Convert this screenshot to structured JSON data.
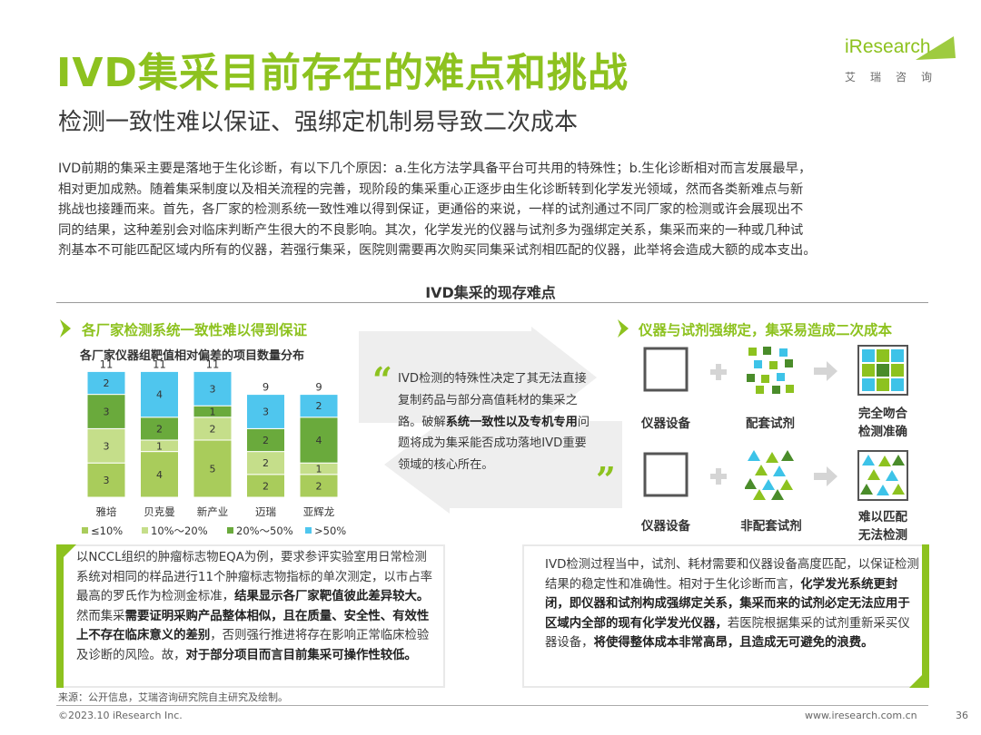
{
  "header": {
    "title": "IVD集采目前存在的难点和挑战",
    "subtitle": "检测一致性难以保证、强绑定机制易导致二次成本",
    "logo_text": "iResearch",
    "logo_cn": "艾瑞咨询"
  },
  "intro": [
    "IVD前期的集采主要是落地于生化诊断，有以下几个原因：a.生化方法学具备平台可共用的特殊性；b.生化诊断相对而言发展最早，",
    "相对更加成熟。随着集采制度以及相关流程的完善，现阶段的集采重心正逐步由生化诊断转到化学发光领域，然而各类新难点与新",
    "挑战也接踵而来。首先，各厂家的检测系统一致性难以得到保证，更通俗的来说，一样的试剂通过不同厂家的检测或许会展现出不",
    "同的结果，这种差别会对临床判断产生很大的不良影响。其次，化学发光的仪器与试剂多为强绑定关系，集采而来的一种或几种试",
    "剂基本不可能匹配区域内所有的仪器，若强行集采，医院则需要再次购买同集采试剂相匹配的仪器，此举将会造成大额的成本支出。"
  ],
  "section_title": "IVD集采的现存难点",
  "left_panel": {
    "heading": "各厂家检测系统一致性难以得到保证"
  },
  "right_panel": {
    "heading": "仪器与试剂强绑定，集采易造成二次成本",
    "row1": {
      "a": "仪器设备",
      "b": "配套试剂",
      "c1": "完全吻合",
      "c2": "检测准确"
    },
    "row2": {
      "a": "仪器设备",
      "b": "非配套试剂",
      "c1": "难以匹配",
      "c2": "无法检测"
    },
    "colors": {
      "square_fill": "#3dc3e8",
      "triangle_fill": "#8dc21f",
      "dark_green": "#4a8c2a",
      "grid_fill": "#8dc21f"
    }
  },
  "quote": {
    "open": "“",
    "close": "”",
    "p1": "IVD检测的特殊性决定了其无法直接复制药品与部分高值耗材的集采之路。破解",
    "p1_bold": "系统一致性以及专机专用",
    "p1_end": "问题将成为集采能否成功落地IVD重要领域的核心所在。"
  },
  "box_left": {
    "t1": "以NCCL组织的肿瘤标志物EQA为例，要求参评实验室用日常检测系统对相同的样品进行11个肿瘤标志物指标的单次测定，以市占率最高的罗氏作为检测金标准，",
    "b1": "结果显示各厂家靶值彼此差异较大。",
    "t2": "然而集采",
    "b2": "需要证明采购产品整体相似，且在质量、安全性、有效性上不存在临床意义的差别",
    "t3": "，否则强行推进将存在影响正常临床检验及诊断的风险。故，",
    "b3": "对于部分项目而言目前集采可操作性较低。"
  },
  "box_right": {
    "t1": "IVD检测过程当中，试剂、耗材需要和仪器设备高度匹配，以保证检测结果的稳定性和准确性。相对于生化诊断而言，",
    "b1": "化学发光系统更封闭，即仪器和试剂构成强绑定关系，集采而来的试剂必定无法应用于区域内全部的现有化学发光仪器，",
    "t2": "若医院根据集采的试剂重新采买仪器设备，",
    "b2": "将使得整体成本非常高昂，且造成无可避免的浪费。"
  },
  "footer": {
    "source": "来源：公开信息，艾瑞咨询研究院自主研究及绘制。",
    "copyright": "©2023.10 iResearch Inc.",
    "url": "www.iresearch.com.cn",
    "page": "36"
  },
  "chart_data": {
    "type": "bar",
    "stacked": true,
    "title": "各厂家仪器组靶值相对偏差的项目数量分布",
    "categories": [
      "雅培",
      "贝克曼",
      "新产业",
      "迈瑞",
      "亚辉龙"
    ],
    "totals": [
      11,
      11,
      11,
      9,
      9
    ],
    "series": [
      {
        "name": "≤10%",
        "color": "#a9cc5b",
        "values": [
          3,
          4,
          5,
          2,
          2
        ]
      },
      {
        "name": "10%～20%",
        "color": "#c5de8a",
        "values": [
          3,
          1,
          2,
          2,
          1
        ]
      },
      {
        "name": "20%～50%",
        "color": "#6aaa3c",
        "values": [
          3,
          2,
          1,
          2,
          4
        ]
      },
      {
        "name": ">50%",
        "color": "#4fc6ee",
        "values": [
          2,
          4,
          3,
          3,
          2
        ]
      }
    ],
    "ylim": [
      0,
      11
    ],
    "grid": false,
    "legend": "bottom"
  }
}
